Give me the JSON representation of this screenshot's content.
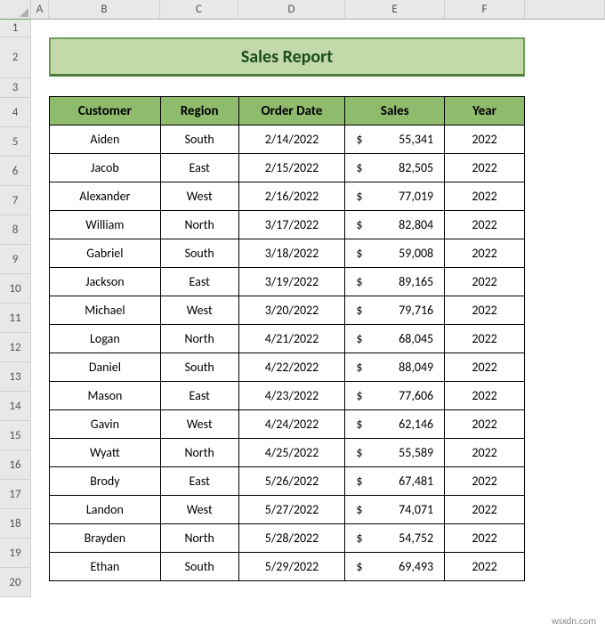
{
  "columns": {
    "corner_width": 35,
    "A_width": 20,
    "B_width": 125,
    "C_width": 88,
    "D_width": 120,
    "E_width": 112,
    "F_width": 90,
    "labels": [
      "A",
      "B",
      "C",
      "D",
      "E",
      "F"
    ]
  },
  "row_heights": {
    "r1": 20,
    "r2": 46,
    "r3": 22,
    "default": 33
  },
  "title": {
    "text": "Sales Report",
    "bg_color": "#c4d9a9",
    "border_color": "#6a9f58",
    "text_color": "#1a4d1a",
    "font_size": 20
  },
  "table": {
    "header_bg": "#8fbb6c",
    "border_color": "#000000",
    "cell_bg": "#ffffff",
    "columns": [
      "Customer",
      "Region",
      "Order Date",
      "Sales",
      "Year"
    ],
    "rows": [
      {
        "customer": "Aiden",
        "region": "South",
        "date": "2/14/2022",
        "sales": "55,341",
        "year": "2022"
      },
      {
        "customer": "Jacob",
        "region": "East",
        "date": "2/15/2022",
        "sales": "82,505",
        "year": "2022"
      },
      {
        "customer": "Alexander",
        "region": "West",
        "date": "2/16/2022",
        "sales": "77,019",
        "year": "2022"
      },
      {
        "customer": "William",
        "region": "North",
        "date": "3/17/2022",
        "sales": "82,804",
        "year": "2022"
      },
      {
        "customer": "Gabriel",
        "region": "South",
        "date": "3/18/2022",
        "sales": "59,008",
        "year": "2022"
      },
      {
        "customer": "Jackson",
        "region": "East",
        "date": "3/19/2022",
        "sales": "89,165",
        "year": "2022"
      },
      {
        "customer": "Michael",
        "region": "West",
        "date": "3/20/2022",
        "sales": "79,716",
        "year": "2022"
      },
      {
        "customer": "Logan",
        "region": "North",
        "date": "4/21/2022",
        "sales": "68,045",
        "year": "2022"
      },
      {
        "customer": "Daniel",
        "region": "South",
        "date": "4/22/2022",
        "sales": "88,049",
        "year": "2022"
      },
      {
        "customer": "Mason",
        "region": "East",
        "date": "4/23/2022",
        "sales": "77,606",
        "year": "2022"
      },
      {
        "customer": "Gavin",
        "region": "West",
        "date": "4/24/2022",
        "sales": "62,146",
        "year": "2022"
      },
      {
        "customer": "Wyatt",
        "region": "North",
        "date": "4/25/2022",
        "sales": "55,589",
        "year": "2022"
      },
      {
        "customer": "Brody",
        "region": "East",
        "date": "5/26/2022",
        "sales": "67,481",
        "year": "2022"
      },
      {
        "customer": "Landon",
        "region": "West",
        "date": "5/27/2022",
        "sales": "74,071",
        "year": "2022"
      },
      {
        "customer": "Brayden",
        "region": "North",
        "date": "5/28/2022",
        "sales": "54,752",
        "year": "2022"
      },
      {
        "customer": "Ethan",
        "region": "South",
        "date": "5/29/2022",
        "sales": "69,493",
        "year": "2022"
      }
    ]
  },
  "watermark": "wsxdn.com",
  "currency_symbol": "$",
  "row_count": 20
}
